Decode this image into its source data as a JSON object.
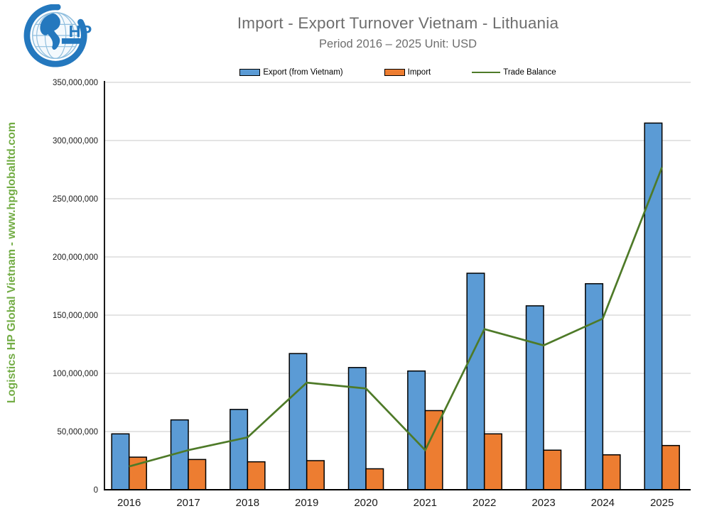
{
  "header": {
    "title": "Import - Export Turnover Vietnam - Lithuania",
    "subtitle": "Period 2016 – 2025  Unit: USD"
  },
  "logo": {
    "letters": "HP",
    "color": "#2478BE"
  },
  "watermark": {
    "text": "Logistics HP Global Vietnam - www.hpgloballtd.com",
    "color": "#72AC44"
  },
  "legend": [
    {
      "label": "Export (from Vietnam)",
      "type": "bar",
      "color": "#5B9BD5"
    },
    {
      "label": "Import",
      "type": "bar",
      "color": "#ED7D31"
    },
    {
      "label": "Trade Balance",
      "type": "line",
      "color": "#4E7A28"
    }
  ],
  "chart_data": {
    "type": "bar",
    "subtype": "clustered bars with line overlay",
    "title": "Import - Export Turnover Vietnam - Lithuania",
    "subtitle": "Period 2016 – 2025  Unit: USD",
    "categories": [
      "2016",
      "2017",
      "2018",
      "2019",
      "2020",
      "2021",
      "2022",
      "2023",
      "2024",
      "2025"
    ],
    "series": [
      {
        "name": "Export (from Vietnam)",
        "type": "bar",
        "color": "#5B9BD5",
        "values": [
          48000000,
          60000000,
          69000000,
          117000000,
          105000000,
          102000000,
          186000000,
          158000000,
          177000000,
          315000000
        ]
      },
      {
        "name": "Import",
        "type": "bar",
        "color": "#ED7D31",
        "values": [
          28000000,
          26000000,
          24000000,
          25000000,
          18000000,
          68000000,
          48000000,
          34000000,
          30000000,
          38000000
        ]
      },
      {
        "name": "Trade Balance",
        "type": "line",
        "color": "#4E7A28",
        "values": [
          20000000,
          34000000,
          45000000,
          92000000,
          87000000,
          34000000,
          138000000,
          124000000,
          147000000,
          277000000
        ]
      }
    ],
    "xlabel": "",
    "ylabel": "",
    "ylim": [
      0,
      350000000
    ],
    "ytick_interval": 50000000,
    "ytick_labels": [
      "0",
      "50,000,000",
      "100,000,000",
      "150,000,000",
      "200,000,000",
      "250,000,000",
      "300,000,000",
      "350,000,000"
    ],
    "grid": true,
    "gridline_color": "#C9C9C9",
    "axis_color": "#000000",
    "legend_position": "top"
  }
}
